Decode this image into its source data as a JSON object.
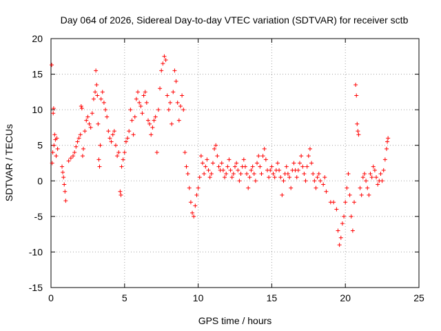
{
  "chart_data": {
    "type": "scatter",
    "title": "Day 064 of 2026, Sidereal Day-to-day VTEC variation (SDTVAR) for receiver sctb",
    "xlabel": "GPS time / hours",
    "ylabel": "SDTVAR / TECUs",
    "xlim": [
      0,
      25
    ],
    "ylim": [
      -15,
      20
    ],
    "xticks": [
      0,
      5,
      10,
      15,
      20,
      25
    ],
    "yticks": [
      -15,
      -10,
      -5,
      0,
      5,
      10,
      15,
      20
    ],
    "grid": true,
    "marker": "+",
    "color": "#ff0000",
    "series": [
      {
        "name": "SDTVAR",
        "points": [
          [
            0.05,
            16.3
          ],
          [
            0.08,
            2.5
          ],
          [
            0.12,
            4.0
          ],
          [
            0.15,
            9.5
          ],
          [
            0.18,
            10.2
          ],
          [
            0.2,
            5.0
          ],
          [
            0.25,
            6.5
          ],
          [
            0.3,
            5.8
          ],
          [
            0.35,
            3.5
          ],
          [
            0.4,
            6.0
          ],
          [
            0.45,
            4.5
          ],
          [
            0.75,
            2.0
          ],
          [
            0.8,
            1.2
          ],
          [
            0.85,
            0.5
          ],
          [
            0.9,
            -0.5
          ],
          [
            0.95,
            -1.5
          ],
          [
            1.0,
            -2.8
          ],
          [
            1.2,
            2.8
          ],
          [
            1.35,
            3.2
          ],
          [
            1.5,
            3.5
          ],
          [
            1.6,
            4.0
          ],
          [
            1.7,
            4.8
          ],
          [
            1.8,
            5.5
          ],
          [
            1.9,
            6.0
          ],
          [
            2.0,
            6.5
          ],
          [
            2.05,
            10.5
          ],
          [
            2.1,
            10.2
          ],
          [
            2.15,
            3.5
          ],
          [
            2.2,
            4.5
          ],
          [
            2.3,
            7.0
          ],
          [
            2.4,
            8.5
          ],
          [
            2.5,
            9.0
          ],
          [
            2.6,
            8.0
          ],
          [
            2.7,
            7.5
          ],
          [
            2.8,
            9.5
          ],
          [
            2.9,
            11.5
          ],
          [
            3.0,
            12.5
          ],
          [
            3.05,
            15.5
          ],
          [
            3.1,
            13.5
          ],
          [
            3.15,
            12.0
          ],
          [
            3.2,
            8.0
          ],
          [
            3.25,
            3.0
          ],
          [
            3.3,
            2.0
          ],
          [
            3.35,
            5.0
          ],
          [
            3.4,
            11.5
          ],
          [
            3.5,
            12.5
          ],
          [
            3.6,
            11.0
          ],
          [
            3.7,
            10.0
          ],
          [
            3.8,
            9.0
          ],
          [
            3.9,
            7.0
          ],
          [
            4.0,
            6.0
          ],
          [
            4.1,
            5.5
          ],
          [
            4.2,
            6.5
          ],
          [
            4.3,
            7.0
          ],
          [
            4.4,
            5.0
          ],
          [
            4.5,
            3.5
          ],
          [
            4.6,
            4.0
          ],
          [
            4.7,
            -1.5
          ],
          [
            4.75,
            -2.0
          ],
          [
            4.8,
            2.0
          ],
          [
            4.9,
            3.0
          ],
          [
            5.0,
            4.0
          ],
          [
            5.1,
            5.5
          ],
          [
            5.2,
            6.0
          ],
          [
            5.3,
            7.0
          ],
          [
            5.4,
            10.0
          ],
          [
            5.5,
            8.5
          ],
          [
            5.6,
            6.5
          ],
          [
            5.7,
            9.0
          ],
          [
            5.8,
            11.5
          ],
          [
            5.9,
            12.5
          ],
          [
            6.0,
            11.0
          ],
          [
            6.1,
            10.5
          ],
          [
            6.2,
            9.5
          ],
          [
            6.3,
            12.0
          ],
          [
            6.4,
            12.5
          ],
          [
            6.5,
            11.0
          ],
          [
            6.6,
            8.5
          ],
          [
            6.7,
            8.0
          ],
          [
            6.8,
            6.5
          ],
          [
            6.9,
            7.5
          ],
          [
            7.0,
            8.5
          ],
          [
            7.1,
            9.0
          ],
          [
            7.2,
            4.0
          ],
          [
            7.3,
            10.0
          ],
          [
            7.4,
            13.0
          ],
          [
            7.5,
            15.5
          ],
          [
            7.6,
            16.5
          ],
          [
            7.7,
            17.5
          ],
          [
            7.8,
            17.0
          ],
          [
            7.9,
            12.0
          ],
          [
            8.0,
            10.0
          ],
          [
            8.1,
            11.0
          ],
          [
            8.2,
            8.0
          ],
          [
            8.3,
            12.5
          ],
          [
            8.4,
            15.5
          ],
          [
            8.5,
            14.0
          ],
          [
            8.6,
            11.0
          ],
          [
            8.7,
            8.5
          ],
          [
            8.8,
            10.5
          ],
          [
            8.9,
            12.0
          ],
          [
            9.0,
            10.0
          ],
          [
            9.1,
            4.0
          ],
          [
            9.2,
            2.0
          ],
          [
            9.3,
            1.0
          ],
          [
            9.4,
            -1.0
          ],
          [
            9.5,
            -3.0
          ],
          [
            9.6,
            -4.5
          ],
          [
            9.7,
            -5.0
          ],
          [
            9.8,
            -3.5
          ],
          [
            9.9,
            -2.0
          ],
          [
            10.0,
            -1.0
          ],
          [
            10.1,
            0.5
          ],
          [
            10.2,
            3.5
          ],
          [
            10.3,
            2.5
          ],
          [
            10.4,
            1.0
          ],
          [
            10.5,
            2.0
          ],
          [
            10.6,
            3.0
          ],
          [
            10.7,
            1.5
          ],
          [
            10.8,
            0.5
          ],
          [
            10.9,
            1.0
          ],
          [
            11.0,
            2.5
          ],
          [
            11.1,
            4.5
          ],
          [
            11.2,
            5.0
          ],
          [
            11.3,
            3.5
          ],
          [
            11.4,
            2.0
          ],
          [
            11.5,
            1.5
          ],
          [
            11.6,
            2.5
          ],
          [
            11.7,
            1.5
          ],
          [
            11.8,
            0.5
          ],
          [
            11.9,
            1.0
          ],
          [
            12.0,
            2.0
          ],
          [
            12.1,
            3.0
          ],
          [
            12.2,
            1.5
          ],
          [
            12.3,
            0.5
          ],
          [
            12.4,
            1.0
          ],
          [
            12.5,
            2.0
          ],
          [
            12.6,
            2.5
          ],
          [
            12.7,
            1.5
          ],
          [
            12.8,
            0.0
          ],
          [
            12.9,
            1.0
          ],
          [
            13.0,
            2.0
          ],
          [
            13.1,
            3.0
          ],
          [
            13.2,
            2.0
          ],
          [
            13.3,
            1.0
          ],
          [
            13.4,
            -1.0
          ],
          [
            13.5,
            0.5
          ],
          [
            13.6,
            1.5
          ],
          [
            13.7,
            2.0
          ],
          [
            13.8,
            1.0
          ],
          [
            13.9,
            0.0
          ],
          [
            14.0,
            2.5
          ],
          [
            14.1,
            3.5
          ],
          [
            14.2,
            2.0
          ],
          [
            14.3,
            1.0
          ],
          [
            14.4,
            3.5
          ],
          [
            14.5,
            4.5
          ],
          [
            14.6,
            3.0
          ],
          [
            14.7,
            1.5
          ],
          [
            14.8,
            0.5
          ],
          [
            14.9,
            1.5
          ],
          [
            15.0,
            2.0
          ],
          [
            15.1,
            1.0
          ],
          [
            15.2,
            0.5
          ],
          [
            15.3,
            1.5
          ],
          [
            15.4,
            2.5
          ],
          [
            15.5,
            1.5
          ],
          [
            15.6,
            0.5
          ],
          [
            15.7,
            -2.0
          ],
          [
            15.8,
            0.0
          ],
          [
            15.9,
            1.0
          ],
          [
            16.0,
            2.0
          ],
          [
            16.1,
            1.0
          ],
          [
            16.2,
            0.5
          ],
          [
            16.3,
            -1.0
          ],
          [
            16.4,
            1.5
          ],
          [
            16.5,
            2.5
          ],
          [
            16.6,
            1.5
          ],
          [
            16.7,
            0.5
          ],
          [
            16.8,
            1.5
          ],
          [
            16.9,
            2.5
          ],
          [
            17.0,
            3.5
          ],
          [
            17.1,
            2.0
          ],
          [
            17.2,
            1.0
          ],
          [
            17.3,
            0.0
          ],
          [
            17.4,
            2.0
          ],
          [
            17.5,
            3.5
          ],
          [
            17.6,
            4.5
          ],
          [
            17.7,
            2.5
          ],
          [
            17.8,
            1.0
          ],
          [
            17.9,
            0.0
          ],
          [
            18.0,
            -1.0
          ],
          [
            18.1,
            0.5
          ],
          [
            18.2,
            1.0
          ],
          [
            18.3,
            0.0
          ],
          [
            18.5,
            -0.5
          ],
          [
            18.6,
            0.5
          ],
          [
            18.7,
            -1.5
          ],
          [
            19.0,
            -3.0
          ],
          [
            19.2,
            -3.0
          ],
          [
            19.4,
            -4.0
          ],
          [
            19.5,
            -7.0
          ],
          [
            19.6,
            -9.0
          ],
          [
            19.7,
            -8.0
          ],
          [
            19.8,
            -6.0
          ],
          [
            19.9,
            -5.0
          ],
          [
            20.0,
            -3.0
          ],
          [
            20.1,
            -1.0
          ],
          [
            20.2,
            1.0
          ],
          [
            20.3,
            -2.0
          ],
          [
            20.4,
            -5.0
          ],
          [
            20.5,
            -7.0
          ],
          [
            20.6,
            -3.0
          ],
          [
            20.7,
            13.5
          ],
          [
            20.75,
            12.0
          ],
          [
            20.8,
            8.0
          ],
          [
            20.85,
            7.0
          ],
          [
            20.9,
            6.5
          ],
          [
            21.0,
            -1.0
          ],
          [
            21.1,
            -2.0
          ],
          [
            21.2,
            0.5
          ],
          [
            21.3,
            1.0
          ],
          [
            21.4,
            0.0
          ],
          [
            21.5,
            -1.0
          ],
          [
            21.6,
            -2.0
          ],
          [
            21.7,
            1.0
          ],
          [
            21.8,
            0.5
          ],
          [
            21.9,
            2.0
          ],
          [
            22.0,
            1.5
          ],
          [
            22.1,
            0.5
          ],
          [
            22.2,
            -0.5
          ],
          [
            22.3,
            0.0
          ],
          [
            22.4,
            1.0
          ],
          [
            22.5,
            0.0
          ],
          [
            22.6,
            1.5
          ],
          [
            22.7,
            3.0
          ],
          [
            22.8,
            4.5
          ],
          [
            22.85,
            5.5
          ],
          [
            22.9,
            6.0
          ]
        ]
      }
    ]
  }
}
